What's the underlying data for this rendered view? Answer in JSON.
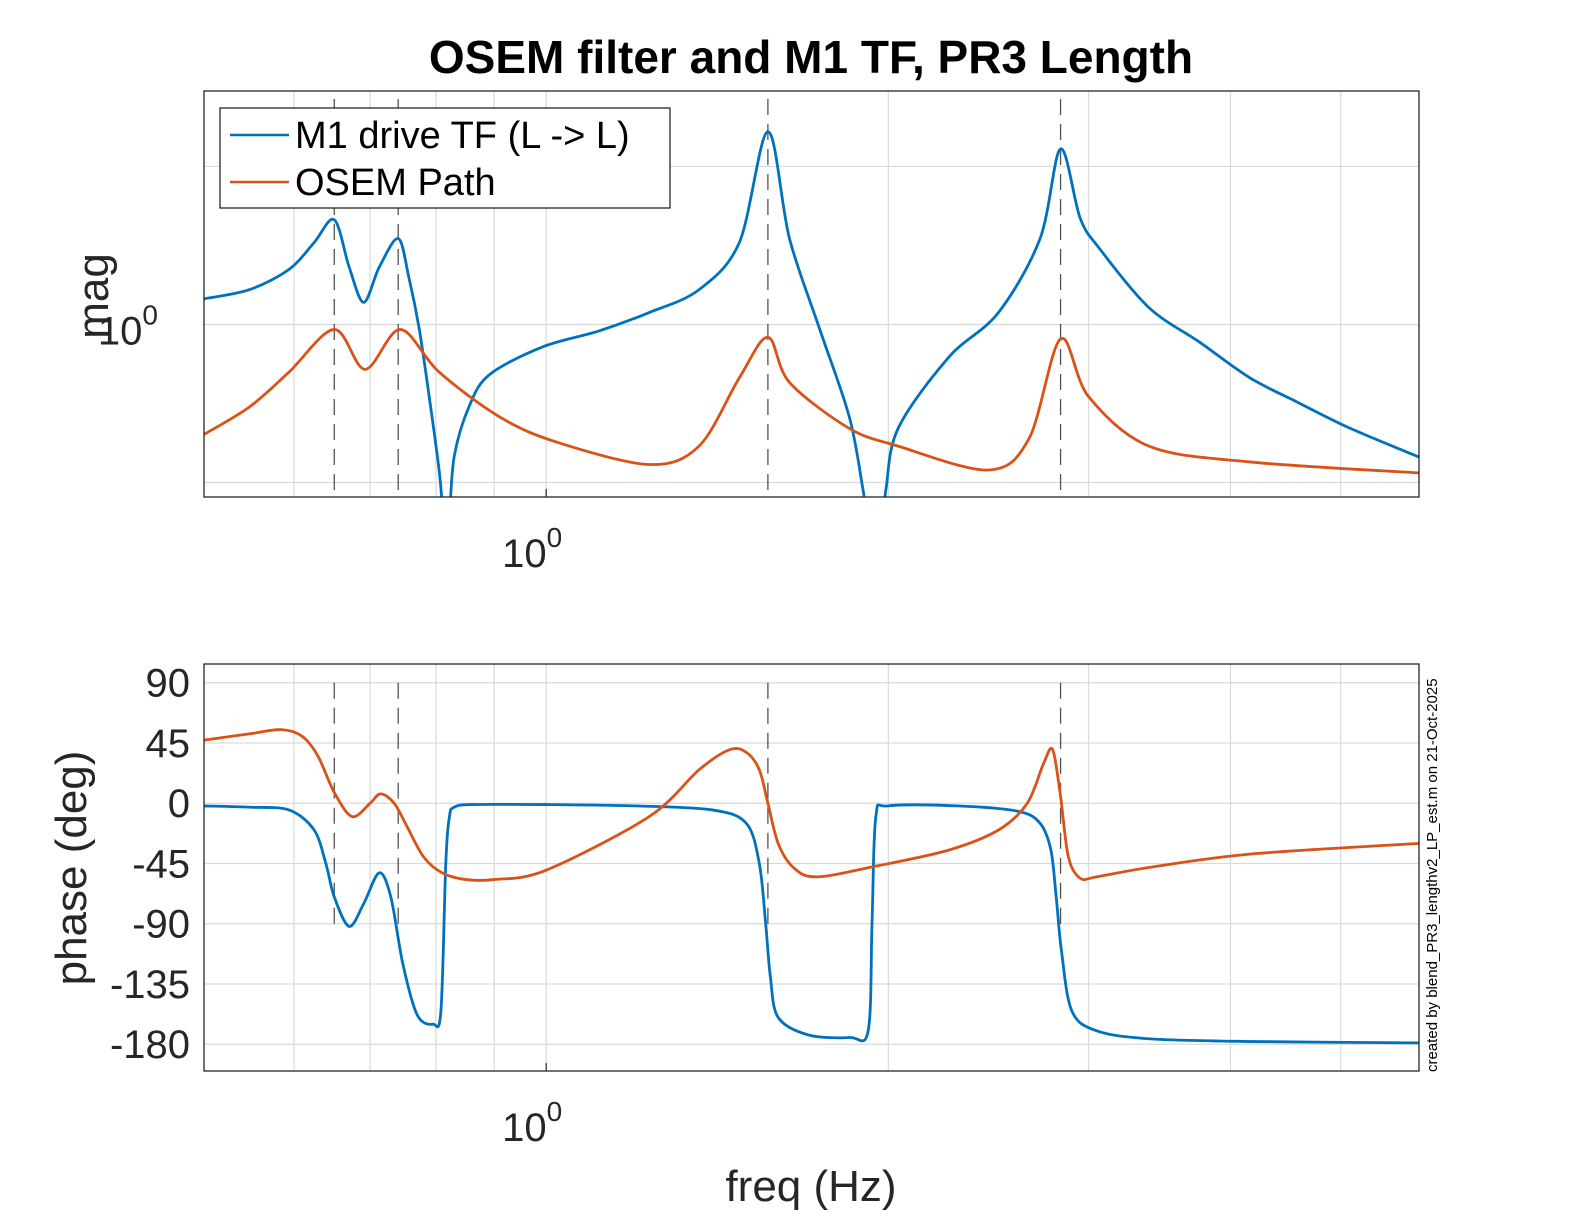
{
  "chart_data": [
    {
      "type": "line",
      "panel": "magnitude",
      "title": "OSEM filter and M1 TF, PR3 Length",
      "xlabel": "",
      "ylabel": "mag",
      "xscale": "log",
      "yscale": "log",
      "xlim": [
        0.5,
        5.86
      ],
      "ylim": [
        0.081,
        30
      ],
      "x_tick_labels": [
        {
          "value": 1,
          "base": "10",
          "exp": "0"
        }
      ],
      "y_tick_labels": [
        {
          "value": 1,
          "base": "10",
          "exp": "0"
        }
      ],
      "x_grid": [
        0.6,
        0.7,
        0.8,
        0.9,
        1,
        2,
        3,
        4,
        5
      ],
      "y_grid": [
        0.1,
        1,
        10
      ],
      "grid": true,
      "legend": {
        "placement": "top-left",
        "entries": [
          "M1 drive TF (L -> L)",
          "OSEM Path"
        ]
      },
      "vlines": [
        0.651,
        0.741,
        1.567,
        2.835
      ],
      "series": [
        {
          "name": "M1 drive TF (L -> L)",
          "color": "#0072BD",
          "x": [
            0.499,
            0.548,
            0.594,
            0.625,
            0.651,
            0.671,
            0.691,
            0.713,
            0.741,
            0.757,
            0.773,
            0.789,
            0.805,
            0.812,
            0.817,
            0.822,
            0.83,
            0.855,
            0.891,
            0.992,
            1.113,
            1.232,
            1.363,
            1.479,
            1.567,
            1.637,
            1.739,
            1.848,
            1.9,
            1.925,
            1.963,
            1.99,
            2.04,
            2.26,
            2.5,
            2.72,
            2.835,
            2.95,
            3.07,
            3.39,
            3.76,
            4.16,
            4.59,
            5.1,
            5.86
          ],
          "y": [
            1.45,
            1.66,
            2.23,
            3.3,
            4.6,
            2.3,
            1.38,
            2.3,
            3.5,
            2.0,
            0.95,
            0.35,
            0.12,
            0.06,
            0.04,
            0.06,
            0.146,
            0.3,
            0.48,
            0.72,
            0.91,
            1.19,
            1.66,
            3.3,
            16.6,
            3.5,
            0.95,
            0.26,
            0.09,
            0.05,
            0.04,
            0.09,
            0.22,
            0.62,
            1.19,
            3.5,
            12.9,
            4.7,
            3.0,
            1.28,
            0.77,
            0.46,
            0.32,
            0.22,
            0.145
          ]
        },
        {
          "name": "OSEM Path",
          "color": "#D95319",
          "x": [
            0.499,
            0.548,
            0.594,
            0.651,
            0.693,
            0.744,
            0.805,
            0.91,
            1.022,
            1.232,
            1.363,
            1.479,
            1.567,
            1.637,
            1.848,
            2.04,
            2.45,
            2.66,
            2.835,
            3.0,
            3.39,
            4.16,
            5.86
          ],
          "y": [
            0.2,
            0.3,
            0.5,
            0.93,
            0.52,
            0.93,
            0.5,
            0.26,
            0.18,
            0.13,
            0.17,
            0.46,
            0.83,
            0.43,
            0.22,
            0.17,
            0.12,
            0.19,
            0.81,
            0.35,
            0.17,
            0.135,
            0.115
          ]
        }
      ]
    },
    {
      "type": "line",
      "panel": "phase",
      "title": "",
      "xlabel": "freq (Hz)",
      "ylabel": "phase (deg)",
      "xscale": "log",
      "yscale": "linear",
      "xlim": [
        0.5,
        5.86
      ],
      "ylim": [
        -200,
        104
      ],
      "x_tick_labels": [
        {
          "value": 1,
          "base": "10",
          "exp": "0"
        }
      ],
      "y_ticks": [
        90,
        45,
        0,
        -45,
        -90,
        -135,
        -180
      ],
      "y_tick_labels": [
        "90",
        "45",
        "0",
        "-45",
        "-90",
        "-135",
        "-180"
      ],
      "x_grid": [
        0.6,
        0.7,
        0.8,
        0.9,
        1,
        2,
        3,
        4,
        5
      ],
      "grid": true,
      "vlines": [
        0.651,
        0.741,
        1.567,
        2.835
      ],
      "vline_yrange": [
        -90,
        90
      ],
      "series": [
        {
          "name": "M1 drive TF (L -> L)",
          "color": "#0072BD",
          "x": [
            0.499,
            0.55,
            0.594,
            0.625,
            0.64,
            0.651,
            0.671,
            0.691,
            0.713,
            0.73,
            0.748,
            0.77,
            0.795,
            0.808,
            0.816,
            0.822,
            0.83,
            0.86,
            1.0,
            1.2,
            1.4,
            1.5,
            1.54,
            1.56,
            1.575,
            1.6,
            1.7,
            1.85,
            1.92,
            1.935,
            1.95,
            2.0,
            2.3,
            2.6,
            2.72,
            2.78,
            2.81,
            2.84,
            2.9,
            3.05,
            3.4,
            4.2,
            5.86
          ],
          "y": [
            -2,
            -3,
            -5,
            -20,
            -45,
            -70,
            -92,
            -75,
            -52,
            -70,
            -120,
            -158,
            -165,
            -155,
            -45,
            -10,
            -3,
            -1,
            -1,
            -2,
            -5,
            -15,
            -45,
            -90,
            -130,
            -160,
            -173,
            -175,
            -170,
            -90,
            -10,
            -2,
            -2,
            -6,
            -15,
            -35,
            -70,
            -110,
            -155,
            -170,
            -176,
            -178,
            -179
          ]
        },
        {
          "name": "OSEM Path",
          "color": "#D95319",
          "x": [
            0.499,
            0.55,
            0.585,
            0.61,
            0.63,
            0.651,
            0.675,
            0.7,
            0.715,
            0.735,
            0.755,
            0.78,
            0.81,
            0.85,
            0.9,
            1.0,
            1.232,
            1.363,
            1.45,
            1.5,
            1.54,
            1.567,
            1.6,
            1.65,
            1.73,
            1.95,
            2.26,
            2.5,
            2.65,
            2.74,
            2.79,
            2.835,
            2.88,
            2.95,
            3.05,
            3.39,
            4.16,
            5.86
          ],
          "y": [
            47,
            52,
            55,
            50,
            35,
            8,
            -10,
            0,
            7,
            0,
            -18,
            -40,
            -52,
            -57,
            -57,
            -50,
            -10,
            25,
            40,
            38,
            25,
            0,
            -30,
            -48,
            -55,
            -47,
            -35,
            -20,
            0,
            30,
            40,
            5,
            -40,
            -56,
            -55,
            -48,
            -38,
            -30
          ]
        }
      ]
    }
  ],
  "annotation": "created by blend_PR3_lengthv2_LP_est.m on 21-Oct-2025"
}
